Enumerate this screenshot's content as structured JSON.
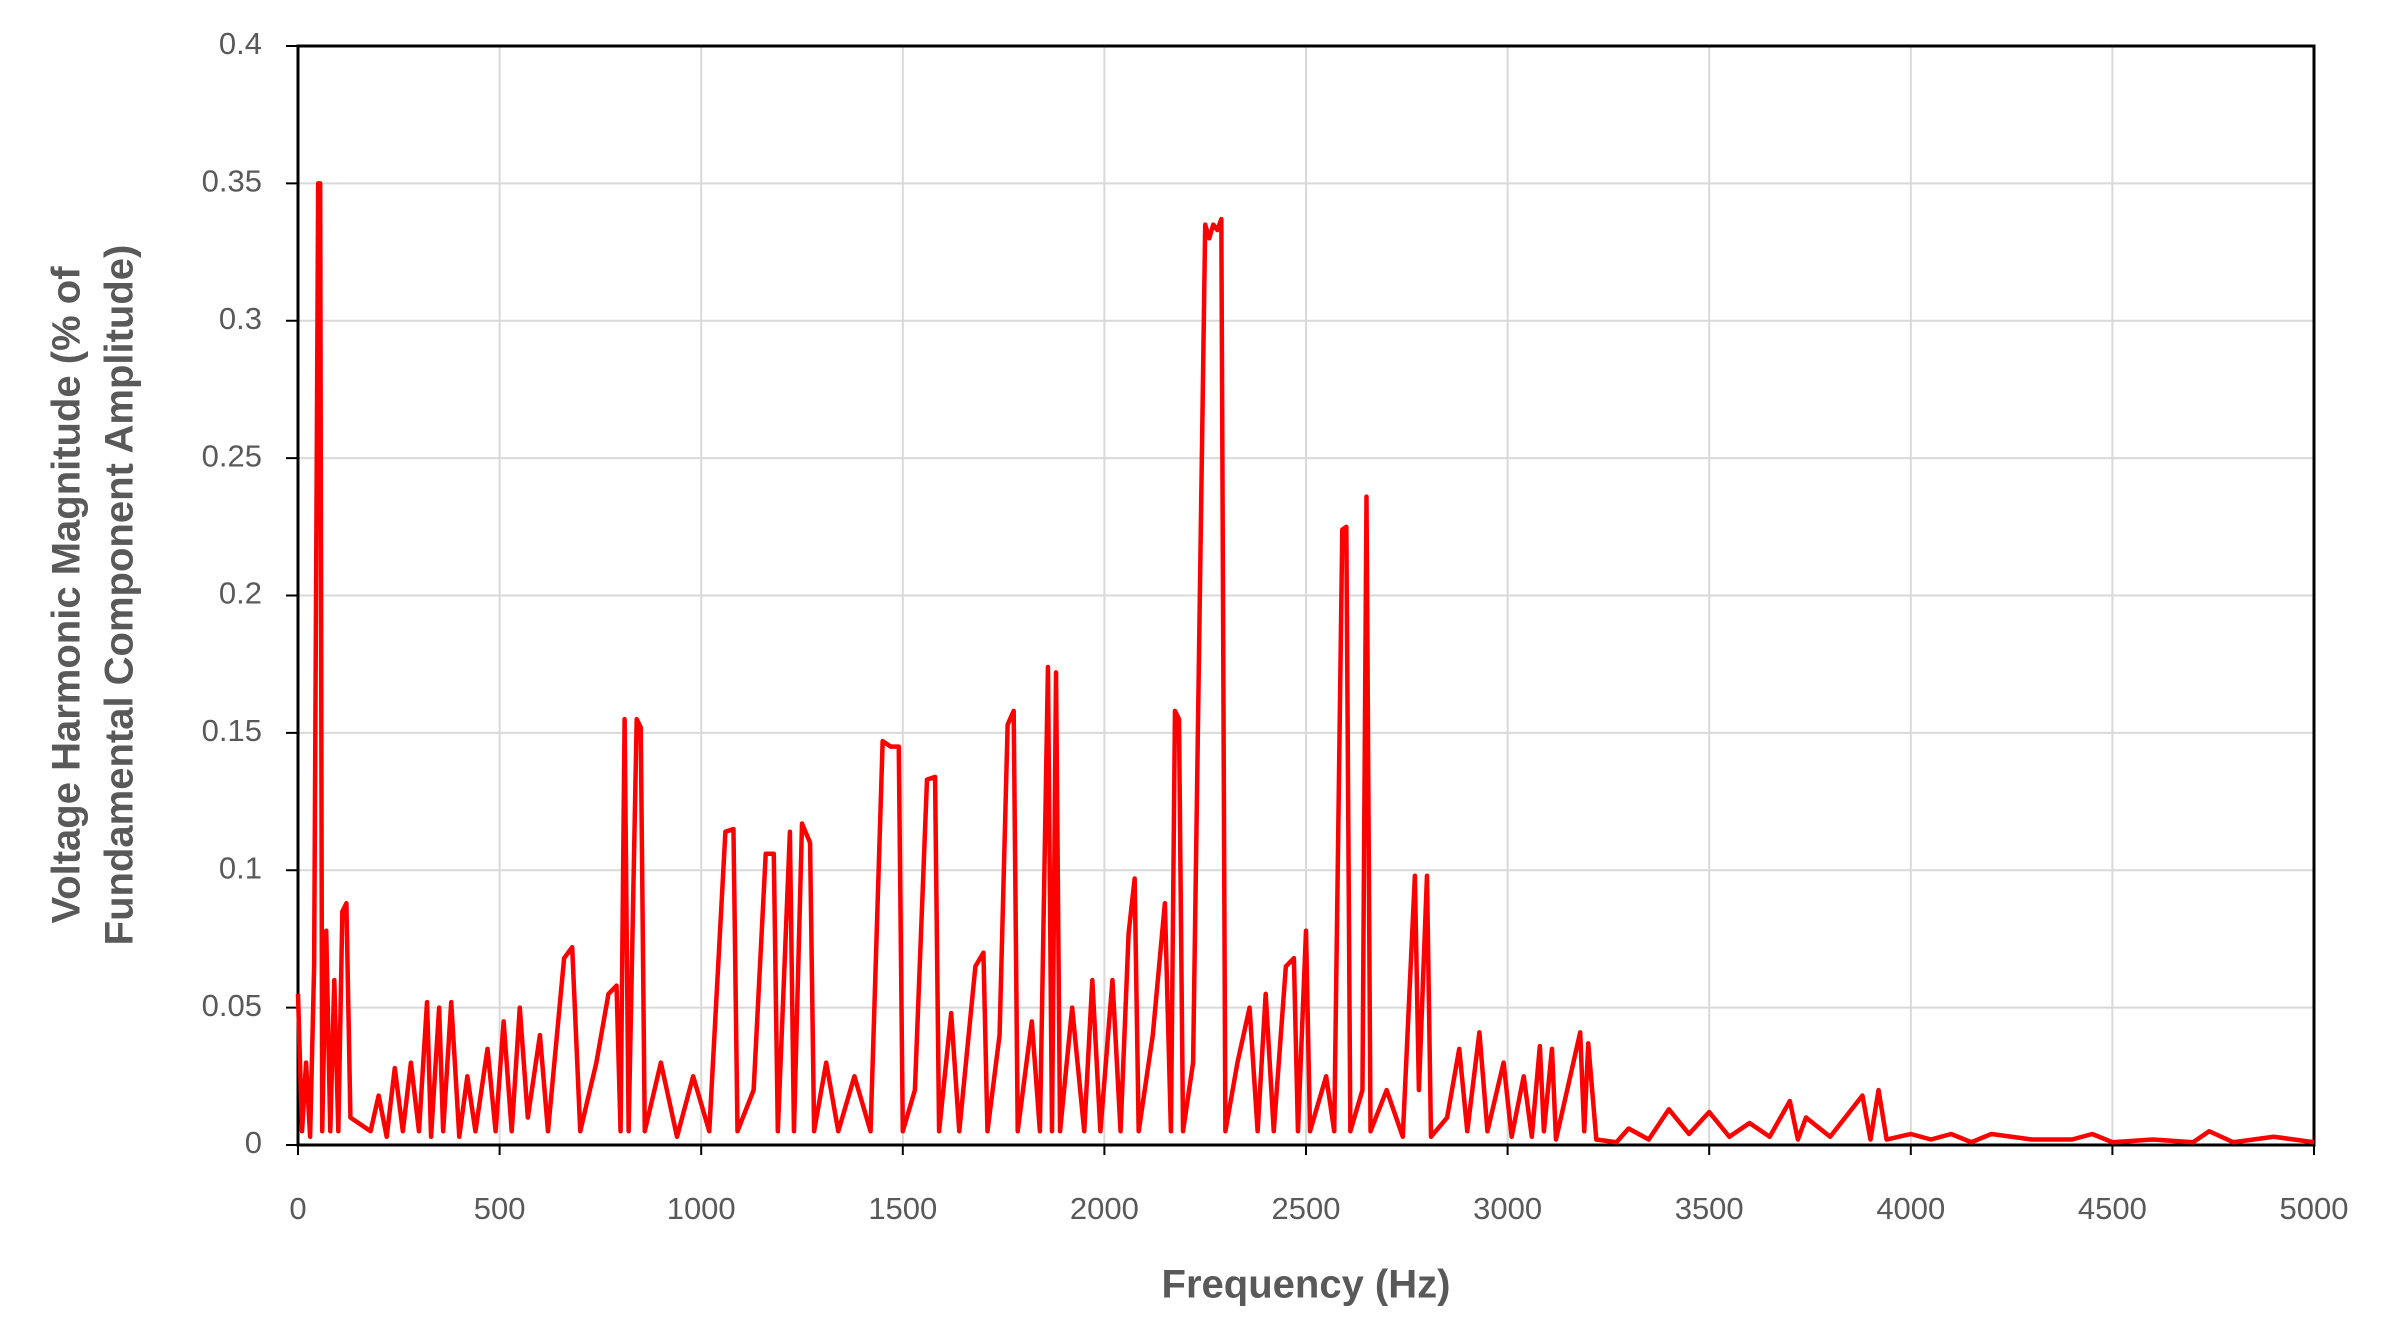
{
  "chart_data": {
    "type": "line",
    "xlabel": "Frequency (Hz)",
    "ylabel": [
      "Voltage Harmonic Magnitude (% of",
      "Fundamental Component Amplitude)"
    ],
    "xlim": [
      0,
      5000
    ],
    "ylim": [
      0,
      0.4
    ],
    "xticks": [
      0,
      500,
      1000,
      1500,
      2000,
      2500,
      3000,
      3500,
      4000,
      4500,
      5000
    ],
    "yticks": [
      0,
      0.05,
      0.1,
      0.15,
      0.2,
      0.25,
      0.3,
      0.35,
      0.4
    ],
    "grid": true,
    "series": [
      {
        "color": "#ff0000",
        "x": [
          0,
          10,
          20,
          30,
          40,
          50,
          55,
          60,
          70,
          80,
          90,
          100,
          110,
          120,
          130,
          150,
          180,
          200,
          220,
          240,
          260,
          280,
          300,
          320,
          330,
          350,
          360,
          380,
          400,
          420,
          440,
          470,
          490,
          510,
          530,
          550,
          570,
          600,
          620,
          660,
          680,
          700,
          740,
          770,
          790,
          800,
          810,
          820,
          840,
          850,
          860,
          900,
          940,
          980,
          1020,
          1060,
          1080,
          1090,
          1130,
          1160,
          1180,
          1190,
          1220,
          1230,
          1250,
          1270,
          1280,
          1310,
          1340,
          1380,
          1420,
          1450,
          1470,
          1490,
          1500,
          1530,
          1560,
          1580,
          1590,
          1620,
          1640,
          1680,
          1700,
          1710,
          1740,
          1760,
          1775,
          1785,
          1820,
          1840,
          1860,
          1870,
          1880,
          1890,
          1920,
          1950,
          1970,
          1990,
          2020,
          2040,
          2060,
          2075,
          2085,
          2120,
          2150,
          2165,
          2175,
          2185,
          2195,
          2220,
          2250,
          2260,
          2270,
          2280,
          2290,
          2300,
          2330,
          2360,
          2380,
          2400,
          2420,
          2450,
          2470,
          2480,
          2500,
          2510,
          2550,
          2570,
          2590,
          2600,
          2610,
          2640,
          2650,
          2660,
          2700,
          2740,
          2770,
          2780,
          2800,
          2810,
          2850,
          2880,
          2900,
          2930,
          2950,
          2990,
          3010,
          3040,
          3060,
          3080,
          3090,
          3110,
          3120,
          3180,
          3190,
          3200,
          3220,
          3270,
          3300,
          3350,
          3400,
          3450,
          3500,
          3550,
          3600,
          3650,
          3700,
          3720,
          3740,
          3800,
          3880,
          3900,
          3920,
          3940,
          4000,
          4050,
          4100,
          4150,
          4200,
          4300,
          4400,
          4450,
          4500,
          4600,
          4700,
          4740,
          4800,
          4900,
          5000
        ],
        "values": [
          0.055,
          0.005,
          0.03,
          0.003,
          0.065,
          0.35,
          0.35,
          0.005,
          0.078,
          0.005,
          0.06,
          0.005,
          0.085,
          0.088,
          0.01,
          0.008,
          0.005,
          0.018,
          0.003,
          0.028,
          0.005,
          0.03,
          0.005,
          0.052,
          0.003,
          0.05,
          0.005,
          0.052,
          0.003,
          0.025,
          0.005,
          0.035,
          0.005,
          0.045,
          0.005,
          0.05,
          0.01,
          0.04,
          0.005,
          0.068,
          0.072,
          0.005,
          0.03,
          0.055,
          0.058,
          0.005,
          0.155,
          0.005,
          0.155,
          0.152,
          0.005,
          0.03,
          0.003,
          0.025,
          0.005,
          0.114,
          0.115,
          0.005,
          0.02,
          0.106,
          0.106,
          0.005,
          0.114,
          0.005,
          0.117,
          0.11,
          0.005,
          0.03,
          0.005,
          0.025,
          0.005,
          0.147,
          0.145,
          0.145,
          0.005,
          0.02,
          0.133,
          0.134,
          0.005,
          0.048,
          0.005,
          0.065,
          0.07,
          0.005,
          0.04,
          0.153,
          0.158,
          0.005,
          0.045,
          0.005,
          0.174,
          0.005,
          0.172,
          0.005,
          0.05,
          0.005,
          0.06,
          0.005,
          0.06,
          0.005,
          0.077,
          0.097,
          0.005,
          0.04,
          0.088,
          0.005,
          0.158,
          0.155,
          0.005,
          0.03,
          0.335,
          0.33,
          0.335,
          0.333,
          0.337,
          0.005,
          0.03,
          0.05,
          0.005,
          0.055,
          0.005,
          0.065,
          0.068,
          0.005,
          0.078,
          0.005,
          0.025,
          0.005,
          0.224,
          0.225,
          0.005,
          0.02,
          0.236,
          0.005,
          0.02,
          0.003,
          0.098,
          0.02,
          0.098,
          0.003,
          0.01,
          0.035,
          0.005,
          0.041,
          0.005,
          0.03,
          0.003,
          0.025,
          0.003,
          0.036,
          0.005,
          0.035,
          0.002,
          0.041,
          0.005,
          0.037,
          0.002,
          0.001,
          0.006,
          0.002,
          0.013,
          0.004,
          0.012,
          0.003,
          0.008,
          0.003,
          0.016,
          0.002,
          0.01,
          0.003,
          0.018,
          0.002,
          0.02,
          0.002,
          0.004,
          0.002,
          0.004,
          0.001,
          0.004,
          0.002,
          0.002,
          0.004,
          0.001,
          0.002,
          0.001,
          0.005,
          0.001,
          0.003,
          0.001
        ]
      }
    ]
  }
}
